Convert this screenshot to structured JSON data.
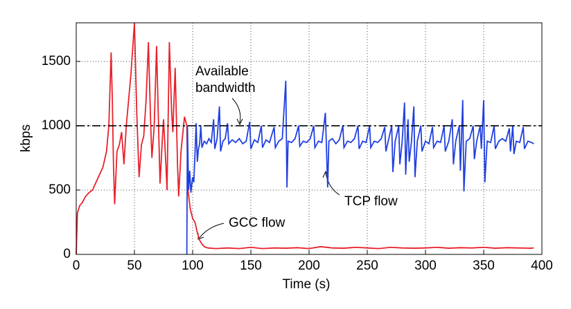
{
  "chart_data": {
    "type": "line",
    "xlabel": "Time (s)",
    "ylabel": "kbps",
    "xlim": [
      0,
      400
    ],
    "ylim": [
      0,
      1800
    ],
    "xticks": [
      0,
      50,
      100,
      150,
      200,
      250,
      300,
      350,
      400
    ],
    "yticks": [
      0,
      500,
      1000,
      1500
    ],
    "grid": true,
    "annotations": [
      "Available",
      "bandwidth",
      "TCP flow",
      "GCC flow"
    ],
    "series": [
      {
        "color": "#e8202a",
        "x": [
          0,
          1,
          3,
          5,
          8,
          11,
          14,
          17,
          20,
          23,
          26,
          28,
          30,
          31,
          32,
          33,
          35,
          37,
          39,
          41,
          43,
          45,
          47,
          50,
          52,
          54,
          56,
          58,
          60,
          62,
          64,
          65,
          67,
          69,
          71,
          72,
          74,
          75,
          77,
          78,
          80,
          82,
          83,
          85,
          87,
          88,
          90,
          93,
          95,
          96,
          98,
          100,
          102,
          104,
          106,
          108,
          110,
          113,
          120,
          130,
          140,
          150,
          160,
          170,
          180,
          190,
          200,
          210,
          220,
          230,
          240,
          250,
          260,
          270,
          280,
          290,
          300,
          310,
          320,
          330,
          340,
          350,
          360,
          370,
          380,
          390,
          393
        ],
        "values": [
          0,
          320,
          380,
          400,
          450,
          480,
          500,
          560,
          620,
          680,
          800,
          1000,
          1570,
          1200,
          700,
          390,
          800,
          850,
          950,
          700,
          1000,
          1200,
          1400,
          1800,
          1100,
          600,
          850,
          920,
          1200,
          1650,
          1000,
          750,
          1000,
          1620,
          900,
          550,
          900,
          1050,
          700,
          500,
          1650,
          1100,
          950,
          1450,
          700,
          450,
          800,
          1070,
          1000,
          500,
          350,
          280,
          250,
          170,
          110,
          80,
          60,
          50,
          45,
          50,
          45,
          55,
          45,
          50,
          48,
          52,
          45,
          60,
          50,
          48,
          55,
          50,
          45,
          55,
          50,
          48,
          50,
          55,
          48,
          52,
          50,
          55,
          48,
          52,
          50,
          48,
          50
        ]
      },
      {
        "color": "#1f3fe0",
        "x": [
          95,
          95.5,
          96.5,
          97.5,
          98.5,
          100,
          101,
          102,
          103,
          104,
          105,
          106,
          107,
          108,
          110,
          112,
          114,
          116,
          118,
          119,
          121,
          123,
          124,
          126,
          128,
          130,
          131,
          134,
          137,
          140,
          143,
          146,
          149,
          150,
          153,
          156,
          159,
          160,
          163,
          166,
          170,
          171,
          174,
          177,
          180,
          181,
          182,
          185,
          188,
          191,
          192,
          195,
          198,
          201,
          204,
          205,
          208,
          211,
          214,
          216,
          217,
          220,
          223,
          226,
          229,
          230,
          233,
          236,
          239,
          242,
          243,
          246,
          249,
          252,
          253,
          256,
          259,
          262,
          265,
          266,
          268,
          271,
          272,
          274,
          277,
          278,
          280,
          282,
          283,
          285,
          286,
          288,
          290,
          291,
          293,
          296,
          297,
          300,
          303,
          306,
          307,
          310,
          313,
          316,
          317,
          320,
          323,
          324,
          326,
          329,
          330,
          332,
          333,
          335,
          338,
          341,
          342,
          344,
          347,
          348,
          350,
          351,
          353,
          356,
          359,
          360,
          363,
          366,
          369,
          372,
          373,
          375,
          376,
          378,
          381,
          384,
          385,
          388,
          391,
          393
        ],
        "values": [
          0,
          1000,
          500,
          650,
          480,
          600,
          560,
          780,
          1020,
          720,
          820,
          860,
          1000,
          830,
          880,
          860,
          900,
          870,
          1050,
          820,
          900,
          1150,
          800,
          880,
          900,
          1020,
          860,
          890,
          870,
          900,
          860,
          880,
          1030,
          820,
          890,
          870,
          1000,
          830,
          890,
          870,
          990,
          830,
          880,
          900,
          1350,
          520,
          880,
          870,
          900,
          1000,
          840,
          880,
          870,
          900,
          1000,
          830,
          880,
          870,
          1100,
          520,
          880,
          900,
          860,
          890,
          1000,
          830,
          880,
          870,
          900,
          1000,
          820,
          880,
          870,
          1000,
          830,
          880,
          870,
          900,
          990,
          800,
          880,
          1000,
          640,
          880,
          1000,
          700,
          880,
          1180,
          620,
          1050,
          720,
          880,
          1150,
          600,
          880,
          1000,
          800,
          880,
          860,
          990,
          830,
          880,
          870,
          1000,
          800,
          880,
          1050,
          700,
          880,
          1000,
          650,
          1200,
          490,
          880,
          900,
          1000,
          740,
          880,
          1000,
          820,
          1200,
          560,
          880,
          870,
          1000,
          820,
          880,
          900,
          880,
          980,
          800,
          1000,
          780,
          880,
          870,
          990,
          820,
          880,
          870,
          860
        ]
      },
      {
        "color": "#000000",
        "dash": true,
        "x": [
          0,
          400
        ],
        "values": [
          1000,
          1000
        ]
      }
    ]
  }
}
